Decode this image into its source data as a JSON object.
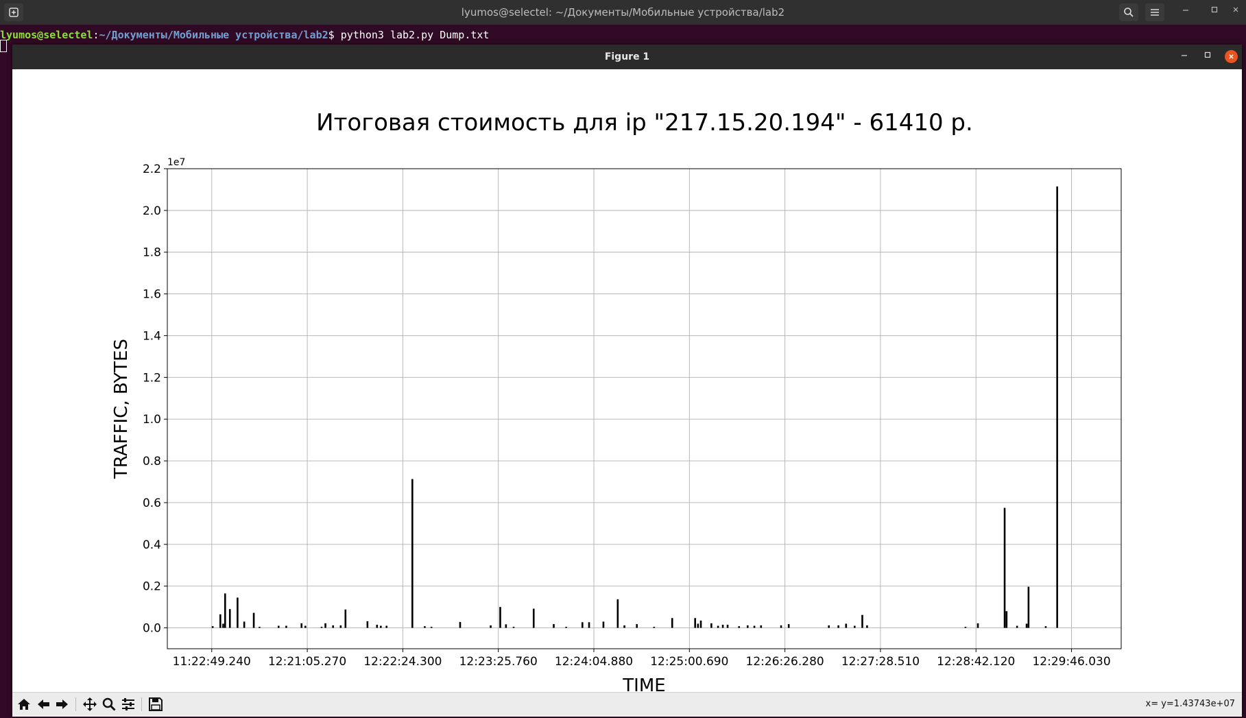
{
  "terminal": {
    "title": "lyumos@selectel: ~/Документы/Мобильные устройства/lab2",
    "prompt_user": "lyumos@selectel",
    "prompt_sep": ":",
    "prompt_path": "~/Документы/Мобильные устройства/lab2",
    "prompt_symbol": "$ ",
    "command": "python3 lab2.py Dump.txt"
  },
  "figure": {
    "window_title": "Figure 1",
    "status": "x= y=1.43743e+07"
  },
  "icons": {
    "new_tab": "new-tab-icon",
    "search": "search-icon",
    "menu": "hamburger-menu-icon",
    "home": "home-icon",
    "back": "arrow-left-icon",
    "forward": "arrow-right-icon",
    "pan": "move-icon",
    "zoom": "magnifier-icon",
    "configure": "sliders-icon",
    "save": "floppy-disk-icon"
  },
  "colors": {
    "terminal_bg": "#300a24",
    "prompt_user": "#8ae234",
    "prompt_path": "#729fcf",
    "close_button": "#e95420",
    "bars": "#000000",
    "grid": "#b0b0b0"
  },
  "chart_data": {
    "type": "bar",
    "title": "Итоговая стоимость для ip \"217.15.20.194\" - 61410 р.",
    "xlabel": "TIME",
    "ylabel": "TRAFFIC, BYTES",
    "y_offset_label": "1e7",
    "ylim": [
      -0.1,
      2.2
    ],
    "xlim": [
      -4.65,
      95.2
    ],
    "yticks": [
      0.0,
      0.2,
      0.4,
      0.6,
      0.8,
      1.0,
      1.2,
      1.4,
      1.6,
      1.8,
      2.0,
      2.2
    ],
    "ytick_labels": [
      "0.0",
      "0.2",
      "0.4",
      "0.6",
      "0.8",
      "1.0",
      "1.2",
      "1.4",
      "1.6",
      "1.8",
      "2.0",
      "2.2"
    ],
    "xtick_positions": [
      0,
      10,
      20,
      30,
      40,
      50,
      60,
      70,
      80,
      90
    ],
    "xtick_labels": [
      "11:22:49.240",
      "12:21:05.270",
      "12:22:24.300",
      "12:23:25.760",
      "12:24:04.880",
      "12:25:00.690",
      "12:26:26.280",
      "12:27:28.510",
      "12:28:42.120",
      "12:29:46.030"
    ],
    "grid": true,
    "bar_color": "#000000",
    "units": "1e7 bytes",
    "bars": [
      [
        0.1,
        0.008
      ],
      [
        0.9,
        0.065
      ],
      [
        1.2,
        0.02
      ],
      [
        1.4,
        0.165
      ],
      [
        1.9,
        0.09
      ],
      [
        2.7,
        0.145
      ],
      [
        3.4,
        0.03
      ],
      [
        4.4,
        0.072
      ],
      [
        5.0,
        0.005
      ],
      [
        7.0,
        0.01
      ],
      [
        7.8,
        0.01
      ],
      [
        9.4,
        0.022
      ],
      [
        9.8,
        0.01
      ],
      [
        11.5,
        0.005
      ],
      [
        11.9,
        0.022
      ],
      [
        12.7,
        0.012
      ],
      [
        13.5,
        0.012
      ],
      [
        14.0,
        0.088
      ],
      [
        16.3,
        0.032
      ],
      [
        17.3,
        0.015
      ],
      [
        17.7,
        0.01
      ],
      [
        18.3,
        0.01
      ],
      [
        21.0,
        0.713
      ],
      [
        22.3,
        0.008
      ],
      [
        23.0,
        0.005
      ],
      [
        26.0,
        0.028
      ],
      [
        29.2,
        0.012
      ],
      [
        30.2,
        0.1
      ],
      [
        30.8,
        0.017
      ],
      [
        31.6,
        0.005
      ],
      [
        33.7,
        0.092
      ],
      [
        35.8,
        0.018
      ],
      [
        37.1,
        0.005
      ],
      [
        38.8,
        0.027
      ],
      [
        39.5,
        0.027
      ],
      [
        41.0,
        0.03
      ],
      [
        42.5,
        0.137
      ],
      [
        43.2,
        0.012
      ],
      [
        44.5,
        0.018
      ],
      [
        46.3,
        0.005
      ],
      [
        48.2,
        0.047
      ],
      [
        50.6,
        0.047
      ],
      [
        50.9,
        0.02
      ],
      [
        51.2,
        0.035
      ],
      [
        52.3,
        0.022
      ],
      [
        53.0,
        0.01
      ],
      [
        53.5,
        0.015
      ],
      [
        54.0,
        0.015
      ],
      [
        55.2,
        0.008
      ],
      [
        56.1,
        0.012
      ],
      [
        56.8,
        0.01
      ],
      [
        57.5,
        0.012
      ],
      [
        59.6,
        0.012
      ],
      [
        60.4,
        0.018
      ],
      [
        64.6,
        0.012
      ],
      [
        65.6,
        0.012
      ],
      [
        66.4,
        0.02
      ],
      [
        67.3,
        0.01
      ],
      [
        68.1,
        0.062
      ],
      [
        68.6,
        0.012
      ],
      [
        78.9,
        0.005
      ],
      [
        80.2,
        0.022
      ],
      [
        83.0,
        0.575
      ],
      [
        83.2,
        0.08
      ],
      [
        84.3,
        0.01
      ],
      [
        85.3,
        0.02
      ],
      [
        85.5,
        0.197
      ],
      [
        87.3,
        0.008
      ],
      [
        88.5,
        2.115
      ]
    ]
  }
}
